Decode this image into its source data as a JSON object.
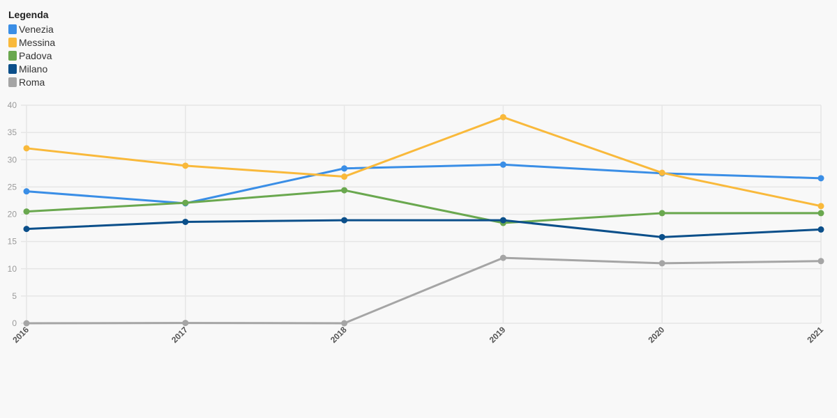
{
  "legend": {
    "title": "Legenda"
  },
  "chart_data": {
    "type": "line",
    "title": "",
    "xlabel": "",
    "ylabel": "",
    "categories": [
      "2016",
      "2017",
      "2018",
      "2019",
      "2020",
      "2021"
    ],
    "ylim": [
      0,
      40
    ],
    "yticks": [
      0,
      5,
      10,
      15,
      20,
      25,
      30,
      35,
      40
    ],
    "grid": true,
    "legend_position": "top-left",
    "series": [
      {
        "name": "Venezia",
        "color": "#3a8ee6",
        "values": [
          24.2,
          22.0,
          28.4,
          29.1,
          27.5,
          26.6
        ]
      },
      {
        "name": "Messina",
        "color": "#f9b93b",
        "values": [
          32.1,
          28.9,
          26.9,
          37.8,
          27.6,
          21.5
        ]
      },
      {
        "name": "Padova",
        "color": "#6aa84f",
        "values": [
          20.5,
          22.1,
          24.4,
          18.4,
          20.2,
          20.2
        ]
      },
      {
        "name": "Milano",
        "color": "#0b4f8a",
        "values": [
          17.3,
          18.6,
          18.9,
          18.9,
          15.8,
          17.2
        ]
      },
      {
        "name": "Roma",
        "color": "#a5a5a5",
        "values": [
          0,
          0.05,
          0,
          12.0,
          11.0,
          11.4
        ]
      }
    ]
  }
}
